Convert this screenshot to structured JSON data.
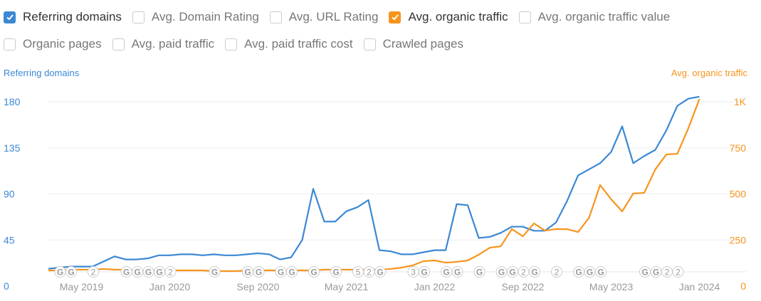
{
  "metrics_row1": [
    {
      "label": "Referring domains",
      "checked": true,
      "color": "#3b88d4"
    },
    {
      "label": "Avg. Domain Rating",
      "checked": false
    },
    {
      "label": "Avg. URL Rating",
      "checked": false
    },
    {
      "label": "Avg. organic traffic",
      "checked": true,
      "color": "#f7941d"
    },
    {
      "label": "Avg. organic traffic value",
      "checked": false
    }
  ],
  "metrics_row2": [
    {
      "label": "Organic pages",
      "checked": false
    },
    {
      "label": "Avg. paid traffic",
      "checked": false
    },
    {
      "label": "Avg. paid traffic cost",
      "checked": false
    },
    {
      "label": "Crawled pages",
      "checked": false
    }
  ],
  "chart_data": {
    "type": "line",
    "x_start": "Feb 2019",
    "x_end": "Jan 2024",
    "x_step": "month",
    "xticks": [
      "May 2019",
      "Jan 2020",
      "Sep 2020",
      "May 2021",
      "Jan 2022",
      "Sep 2022",
      "May 2023",
      "Jan 2024"
    ],
    "left_axis": {
      "label": "Referring domains",
      "ticks": [
        "0",
        "45",
        "90",
        "135",
        "180"
      ],
      "range": [
        0,
        180
      ],
      "color": "#3b88d4"
    },
    "right_axis": {
      "label": "Avg. organic traffic",
      "ticks": [
        "0",
        "250",
        "500",
        "750",
        "1K"
      ],
      "range": [
        0,
        1000
      ],
      "color": "#f7941d"
    },
    "series": [
      {
        "name": "Referring domains",
        "axis": "left",
        "color": "#3b88d4",
        "values": [
          17,
          18,
          19,
          19,
          19,
          24,
          29,
          26,
          26,
          27,
          30,
          30,
          31,
          31,
          30,
          31,
          30,
          30,
          31,
          32,
          31,
          26,
          28,
          45,
          95,
          63,
          63,
          73,
          77,
          84,
          35,
          34,
          31,
          31,
          33,
          35,
          35,
          80,
          79,
          47,
          48,
          52,
          58,
          58,
          54,
          54,
          62,
          83,
          108,
          114,
          120,
          131,
          156,
          120,
          127,
          133,
          152,
          176,
          183,
          185
        ]
      },
      {
        "name": "Avg. organic traffic",
        "axis": "right",
        "color": "#f7941d",
        "values": [
          85,
          85,
          89,
          89,
          89,
          93,
          89,
          89,
          85,
          85,
          85,
          85,
          85,
          85,
          85,
          81,
          81,
          81,
          85,
          85,
          85,
          85,
          85,
          85,
          85,
          89,
          89,
          89,
          89,
          89,
          89,
          93,
          100,
          112,
          135,
          139,
          127,
          131,
          139,
          170,
          208,
          216,
          309,
          270,
          340,
          301,
          309,
          309,
          293,
          371,
          548,
          471,
          405,
          502,
          506,
          633,
          714,
          718,
          857,
          1015
        ]
      }
    ],
    "annotations": [
      {
        "month": "Mar 2019",
        "label": "G"
      },
      {
        "month": "Apr 2019",
        "label": "G"
      },
      {
        "month": "Jun 2019",
        "label": "2"
      },
      {
        "month": "Sep 2019",
        "label": "G"
      },
      {
        "month": "Oct 2019",
        "label": "G"
      },
      {
        "month": "Nov 2019",
        "label": "G"
      },
      {
        "month": "Dec 2019",
        "label": "G"
      },
      {
        "month": "Jan 2020",
        "label": "2"
      },
      {
        "month": "May 2020",
        "label": "G"
      },
      {
        "month": "Aug 2020",
        "label": "G"
      },
      {
        "month": "Sep 2020",
        "label": "G"
      },
      {
        "month": "Nov 2020",
        "label": "G"
      },
      {
        "month": "Dec 2020",
        "label": "G"
      },
      {
        "month": "Feb 2021",
        "label": "G"
      },
      {
        "month": "Apr 2021",
        "label": "G"
      },
      {
        "month": "Jun 2021",
        "label": "5"
      },
      {
        "month": "Jul 2021",
        "label": "2"
      },
      {
        "month": "Aug 2021",
        "label": "G"
      },
      {
        "month": "Nov 2021",
        "label": "3"
      },
      {
        "month": "Dec 2021",
        "label": "G"
      },
      {
        "month": "Feb 2022",
        "label": "G"
      },
      {
        "month": "Mar 2022",
        "label": "G"
      },
      {
        "month": "May 2022",
        "label": "G"
      },
      {
        "month": "Jul 2022",
        "label": "G"
      },
      {
        "month": "Aug 2022",
        "label": "G"
      },
      {
        "month": "Sep 2022",
        "label": "2"
      },
      {
        "month": "Oct 2022",
        "label": "G"
      },
      {
        "month": "Dec 2022",
        "label": "2"
      },
      {
        "month": "Feb 2023",
        "label": "G"
      },
      {
        "month": "Mar 2023",
        "label": "G"
      },
      {
        "month": "Apr 2023",
        "label": "G"
      },
      {
        "month": "Aug 2023",
        "label": "G"
      },
      {
        "month": "Sep 2023",
        "label": "G"
      },
      {
        "month": "Oct 2023",
        "label": "2"
      },
      {
        "month": "Nov 2023",
        "label": "2"
      }
    ]
  }
}
